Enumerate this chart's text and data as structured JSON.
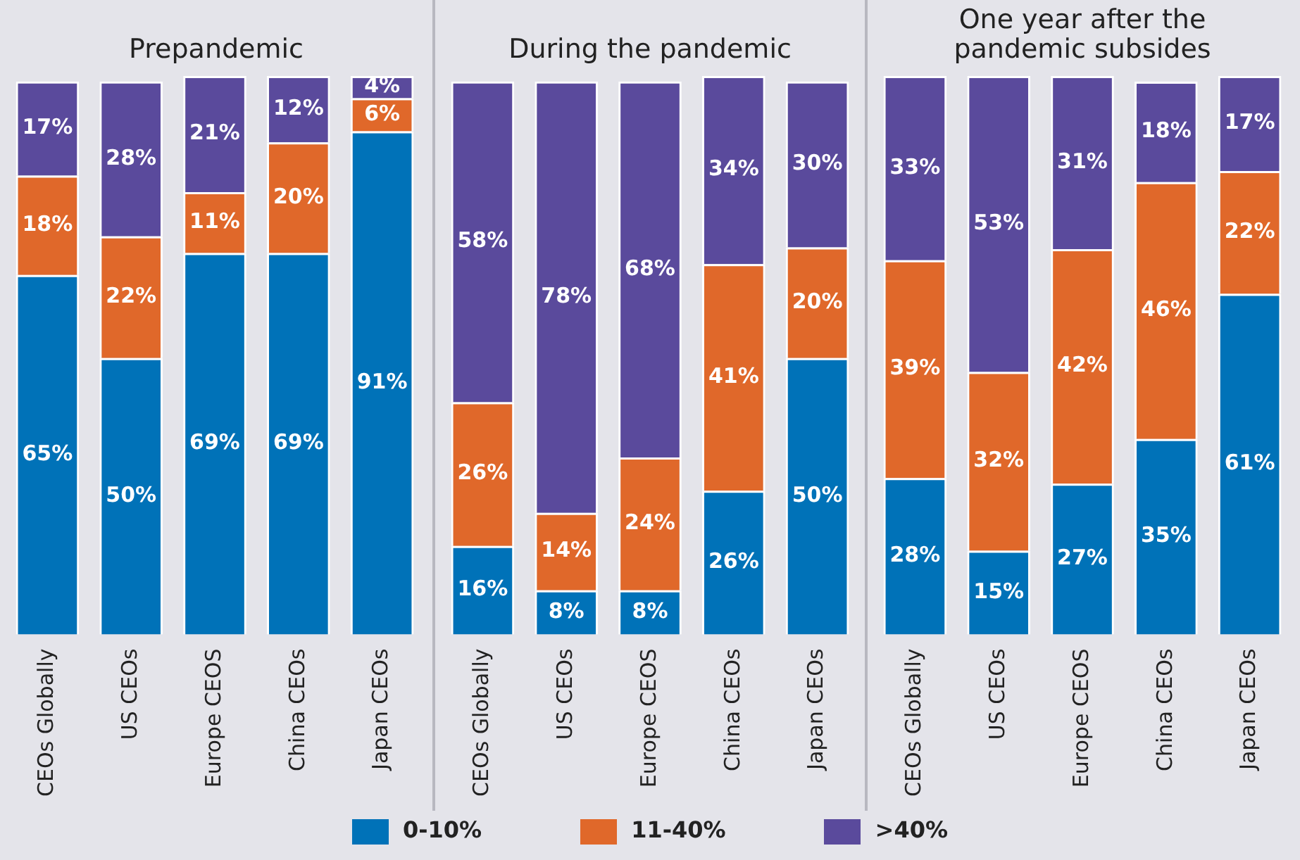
{
  "chart_data": [
    {
      "type": "bar",
      "title": "Prepandemic",
      "categories": [
        "CEOs Globally",
        "US CEOs",
        "Europe CEOS",
        "China CEOs",
        "Japan CEOs"
      ],
      "stacked": true,
      "tick_labels": "x",
      "grid": false,
      "legend": "bottom",
      "series": [
        {
          "name": "0-10%",
          "color": "#0072b8",
          "values": [
            65,
            50,
            69,
            69,
            91
          ],
          "value_labels": [
            "65%",
            "50%",
            "69%",
            "69%",
            "91%"
          ]
        },
        {
          "name": "11-40%",
          "color": "#e0682a",
          "values": [
            18,
            22,
            11,
            20,
            6
          ],
          "value_labels": [
            "18%",
            "22%",
            "11%",
            "20%",
            "6%"
          ]
        },
        {
          "name": ">40%",
          "color": "#5a4a9c",
          "values": [
            17,
            28,
            21,
            12,
            4
          ],
          "value_labels": [
            "17%",
            "28%",
            "21%",
            "12%",
            "4%"
          ]
        }
      ]
    },
    {
      "type": "bar",
      "title": "During the pandemic",
      "categories": [
        "CEOs Globally",
        "US CEOs",
        "Europe CEOS",
        "China CEOs",
        "Japan CEOs"
      ],
      "stacked": true,
      "tick_labels": "x",
      "grid": false,
      "series": [
        {
          "color": "#0072b8",
          "values": [
            16,
            8,
            8,
            26,
            50
          ],
          "value_labels": [
            "16%",
            "8%",
            "8%",
            "26%",
            "50%"
          ]
        },
        {
          "color": "#e0682a",
          "values": [
            26,
            14,
            24,
            41,
            20
          ],
          "value_labels": [
            "26%",
            "14%",
            "24%",
            "41%",
            "20%"
          ]
        },
        {
          "color": "#5a4a9c",
          "values": [
            58,
            78,
            68,
            34,
            30
          ],
          "value_labels": [
            "58%",
            "78%",
            "68%",
            "34%",
            "30%"
          ]
        }
      ]
    },
    {
      "type": "bar",
      "title": "One year after the pandemic subsides",
      "categories": [
        "CEOs Globally",
        "US CEOs",
        "Europe CEOS",
        "China CEOs",
        "Japan CEOs"
      ],
      "stacked": true,
      "tick_labels": "x",
      "grid": false,
      "series": [
        {
          "color": "#0072b8",
          "values": [
            28,
            15,
            27,
            35,
            61
          ],
          "value_labels": [
            "28%",
            "15%",
            "27%",
            "35%",
            "61%"
          ]
        },
        {
          "color": "#e0682a",
          "values": [
            39,
            32,
            42,
            46,
            22
          ],
          "value_labels": [
            "39%",
            "32%",
            "42%",
            "46%",
            "22%"
          ]
        },
        {
          "color": "#5a4a9c",
          "values": [
            33,
            53,
            31,
            18,
            17
          ],
          "value_labels": [
            "33%",
            "53%",
            "31%",
            "18%",
            "17%"
          ]
        }
      ]
    }
  ]
}
